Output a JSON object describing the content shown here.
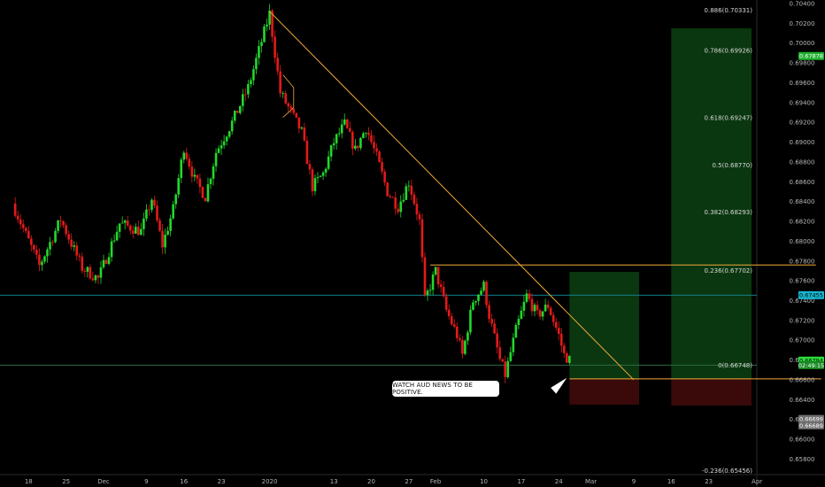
{
  "chart_data": {
    "type": "candlestick",
    "symbol_timeframe": "",
    "y_range": [
      0.6575,
      0.704
    ],
    "x_range_days": [
      -17,
      125
    ],
    "x_ticks": [
      {
        "label": "18",
        "day": -14
      },
      {
        "label": "25",
        "day": -7
      },
      {
        "label": "Dec",
        "day": 0
      },
      {
        "label": "9",
        "day": 8
      },
      {
        "label": "16",
        "day": 15
      },
      {
        "label": "23",
        "day": 22
      },
      {
        "label": "2020",
        "day": 31
      },
      {
        "label": "13",
        "day": 43
      },
      {
        "label": "20",
        "day": 50
      },
      {
        "label": "27",
        "day": 57
      },
      {
        "label": "Feb",
        "day": 62
      },
      {
        "label": "10",
        "day": 71
      },
      {
        "label": "17",
        "day": 78
      },
      {
        "label": "24",
        "day": 85
      },
      {
        "label": "Mar",
        "day": 91
      },
      {
        "label": "9",
        "day": 99
      },
      {
        "label": "16",
        "day": 106
      },
      {
        "label": "23",
        "day": 113
      },
      {
        "label": "Apr",
        "day": 122
      }
    ],
    "y_ticks": [
      "0.70400",
      "0.70200",
      "0.70000",
      "0.69800",
      "0.69600",
      "0.69400",
      "0.69200",
      "0.69000",
      "0.68800",
      "0.68600",
      "0.68400",
      "0.68200",
      "0.68000",
      "0.67800",
      "0.67600",
      "0.67400",
      "0.67200",
      "0.67000",
      "0.66800",
      "0.66600",
      "0.66400",
      "0.66200",
      "0.66000",
      "0.65800"
    ],
    "price_anchors": [
      {
        "day": -17,
        "price": 0.6838
      },
      {
        "day": -12,
        "price": 0.6775
      },
      {
        "day": -8,
        "price": 0.6822
      },
      {
        "day": -4,
        "price": 0.6773
      },
      {
        "day": -1,
        "price": 0.6762
      },
      {
        "day": 3,
        "price": 0.6818
      },
      {
        "day": 7,
        "price": 0.681
      },
      {
        "day": 9,
        "price": 0.6843
      },
      {
        "day": 11,
        "price": 0.6796
      },
      {
        "day": 13,
        "price": 0.6832
      },
      {
        "day": 15,
        "price": 0.6895
      },
      {
        "day": 17,
        "price": 0.6862
      },
      {
        "day": 19,
        "price": 0.6845
      },
      {
        "day": 21,
        "price": 0.689
      },
      {
        "day": 24,
        "price": 0.692
      },
      {
        "day": 27,
        "price": 0.6955
      },
      {
        "day": 31,
        "price": 0.703
      },
      {
        "day": 33,
        "price": 0.695
      },
      {
        "day": 35,
        "price": 0.693
      },
      {
        "day": 37,
        "price": 0.691
      },
      {
        "day": 39,
        "price": 0.6855
      },
      {
        "day": 41,
        "price": 0.6868
      },
      {
        "day": 43,
        "price": 0.69
      },
      {
        "day": 45,
        "price": 0.6918
      },
      {
        "day": 47,
        "price": 0.6892
      },
      {
        "day": 49,
        "price": 0.6915
      },
      {
        "day": 51,
        "price": 0.6885
      },
      {
        "day": 53,
        "price": 0.685
      },
      {
        "day": 55,
        "price": 0.6835
      },
      {
        "day": 57,
        "price": 0.686
      },
      {
        "day": 59,
        "price": 0.682
      },
      {
        "day": 60,
        "price": 0.674
      },
      {
        "day": 62,
        "price": 0.677
      },
      {
        "day": 64,
        "price": 0.673
      },
      {
        "day": 66,
        "price": 0.6705
      },
      {
        "day": 67,
        "price": 0.6685
      },
      {
        "day": 69,
        "price": 0.674
      },
      {
        "day": 71,
        "price": 0.6755
      },
      {
        "day": 72,
        "price": 0.6725
      },
      {
        "day": 74,
        "price": 0.668
      },
      {
        "day": 75,
        "price": 0.6665
      },
      {
        "day": 77,
        "price": 0.671
      },
      {
        "day": 79,
        "price": 0.6745
      },
      {
        "day": 81,
        "price": 0.6725
      },
      {
        "day": 83,
        "price": 0.6735
      },
      {
        "day": 85,
        "price": 0.6705
      },
      {
        "day": 86,
        "price": 0.6685
      },
      {
        "day": 87,
        "price": 0.668
      }
    ],
    "fib_levels": [
      {
        "label": "0.886(0.70331)",
        "price": 0.70331
      },
      {
        "label": "0.786(0.69926)",
        "price": 0.69926
      },
      {
        "label": "0.618(0.69247)",
        "price": 0.69247
      },
      {
        "label": "0.5(0.68770)",
        "price": 0.6877
      },
      {
        "label": "0.382(0.68293)",
        "price": 0.68293
      },
      {
        "label": "0.236(0.67702)",
        "price": 0.67702
      },
      {
        "label": "0(0.66748)",
        "price": 0.66748
      },
      {
        "label": "-0.236(0.65456)",
        "price": 0.65456
      }
    ],
    "trendline": {
      "start_day": 31,
      "start_price": 0.7032,
      "end_day": 99,
      "end_price": 0.666
    },
    "resistance": {
      "start_day": 61,
      "end_day": 133,
      "price": 0.6776
    },
    "support_horizontal": {
      "price": 0.66748
    },
    "stop_line": {
      "start_day": 87,
      "end_day": 134,
      "price": 0.6661
    },
    "blue_level": {
      "price": 0.67455
    },
    "position_1": {
      "start_day": 87,
      "end_day": 100,
      "entry": 0.6661,
      "target": 0.6769,
      "stop": 0.6635
    },
    "position_2": {
      "start_day": 106,
      "end_day": 121,
      "entry": 0.6661,
      "target": 0.7015,
      "stop": 0.6634
    },
    "price_tags": [
      {
        "text": "0.67878",
        "price": 0.6987,
        "bg": "#1fb02f",
        "fg": "#ffffff"
      },
      {
        "text": "0.67455",
        "price": 0.67455,
        "bg": "#17b5cf",
        "fg": "#000000"
      },
      {
        "text": "0.66794",
        "price": 0.66794,
        "bg": "#2ddc3c",
        "fg": "#000000"
      },
      {
        "text": "02:49:15",
        "price": 0.66748,
        "bg": "#1a8a24",
        "fg": "#ffffff"
      },
      {
        "text": "0.66699",
        "price": 0.66205,
        "bg": "#6e6e6e",
        "fg": "#ffffff"
      },
      {
        "text": "0.66689",
        "price": 0.6614,
        "bg": "#6e6e6e",
        "fg": "#ffffff"
      }
    ],
    "annotation": "WATCH AUD NEWS TO BE POSITIVE.",
    "colors": {
      "up": "#23d82c",
      "down": "#e31a1a",
      "trendline": "#f2a93b",
      "fib_line": "#2f6b45",
      "blue_level": "#127f8c"
    }
  }
}
